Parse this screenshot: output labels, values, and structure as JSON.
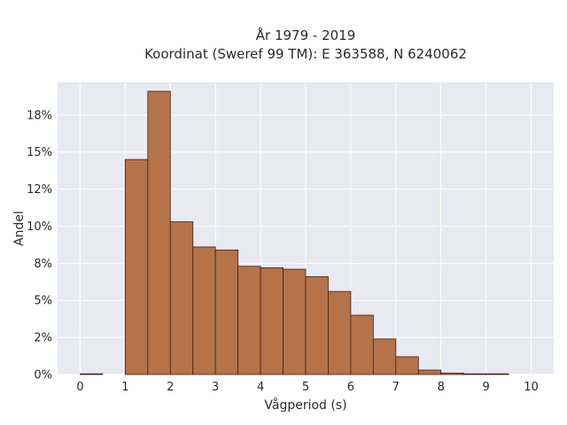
{
  "chart_data": {
    "type": "bar",
    "title_line1": "År 1979 - 2019",
    "title_line2": "Koordinat (Sweref 99 TM): E 363588, N 6240062",
    "xlabel": "Vågperiod (s)",
    "ylabel": "Andel",
    "bin_edges": [
      0,
      0.5,
      1,
      1.5,
      2,
      2.5,
      3,
      3.5,
      4,
      4.5,
      5,
      5.5,
      6,
      6.5,
      7,
      7.5,
      8,
      8.5,
      9,
      9.5
    ],
    "values": [
      0.05,
      0,
      14.5,
      19.1,
      10.3,
      8.6,
      8.4,
      7.3,
      7.2,
      7.1,
      6.6,
      5.6,
      4.0,
      2.4,
      1.2,
      0.3,
      0.1,
      0.05,
      0.05
    ],
    "x_ticks": [
      "0",
      "1",
      "2",
      "3",
      "4",
      "5",
      "6",
      "7",
      "8",
      "9",
      "10"
    ],
    "y_ticks": [
      {
        "value": 0,
        "label": "0%"
      },
      {
        "value": 2.5,
        "label": "2%"
      },
      {
        "value": 5,
        "label": "5%"
      },
      {
        "value": 7.5,
        "label": "8%"
      },
      {
        "value": 10,
        "label": "10%"
      },
      {
        "value": 12.5,
        "label": "12%"
      },
      {
        "value": 15,
        "label": "15%"
      },
      {
        "value": 17.5,
        "label": "18%"
      }
    ],
    "xlim": [
      -0.5,
      10.5
    ],
    "ylim": [
      0,
      19.7
    ],
    "grid": true,
    "colors": {
      "plot_bg": "#e9e9f1",
      "grid": "#ffffff",
      "bar_fill": "#b5734a",
      "bar_edge": "#3b2316"
    }
  }
}
